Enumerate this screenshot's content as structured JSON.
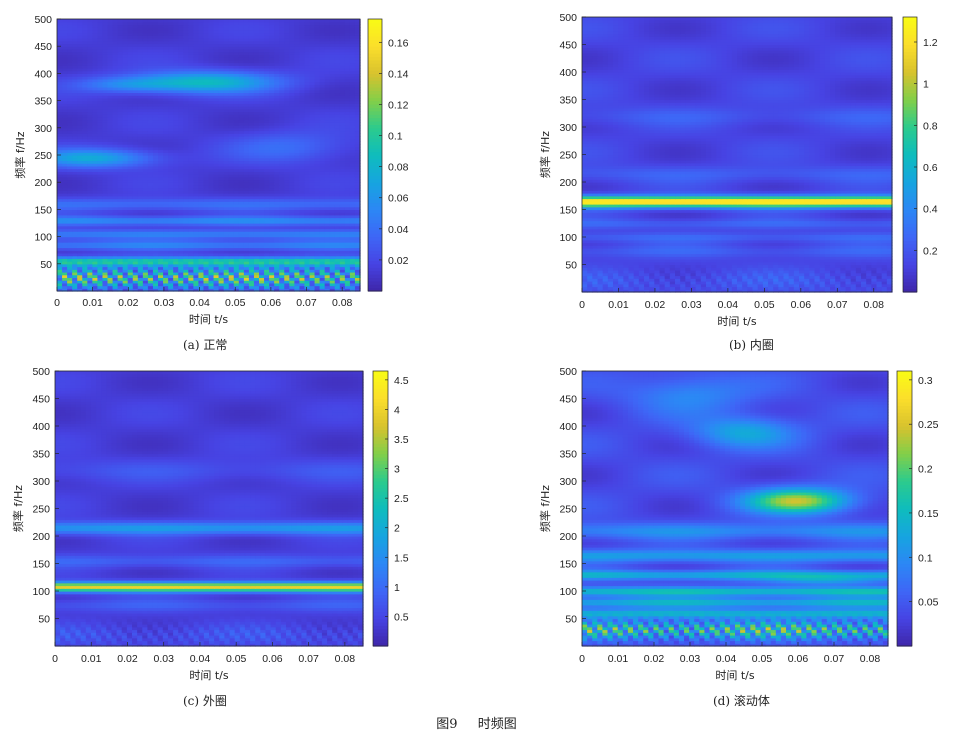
{
  "figure_caption": {
    "number": "图9",
    "title": "时频图"
  },
  "colormap": [
    "#3e26a8",
    "#4743e3",
    "#3e66f6",
    "#2c87f5",
    "#16a4e0",
    "#0ebcbd",
    "#2ccb8d",
    "#82cf49",
    "#d8c22e",
    "#fbde2b",
    "#f9fb15"
  ],
  "chart_data": [
    {
      "id": "a",
      "type": "heatmap",
      "label": "(a)  正常",
      "xlabel": "时间 t/s",
      "ylabel": "频率 f/Hz",
      "xlim": [
        0,
        0.085
      ],
      "ylim": [
        0,
        500
      ],
      "xticks": [
        "0",
        "0.01",
        "0.02",
        "0.03",
        "0.04",
        "0.05",
        "0.06",
        "0.07",
        "0.08"
      ],
      "yticks": [
        "50",
        "100",
        "150",
        "200",
        "250",
        "300",
        "350",
        "400",
        "450",
        "500"
      ],
      "colorbar_ticks": [
        "0.02",
        "0.04",
        "0.06",
        "0.08",
        "0.1",
        "0.12",
        "0.14",
        "0.16"
      ],
      "colorbar_range": [
        0,
        0.175
      ],
      "base": 0.018,
      "bands": [
        {
          "f": 25,
          "w": 14,
          "amp": 0.13,
          "pattern": "zigzag"
        },
        {
          "f": 55,
          "w": 6,
          "amp": 0.08
        },
        {
          "f": 85,
          "w": 6,
          "amp": 0.035
        },
        {
          "f": 105,
          "w": 6,
          "amp": 0.035
        },
        {
          "f": 130,
          "w": 6,
          "amp": 0.04
        },
        {
          "f": 160,
          "w": 8,
          "amp": 0.025
        }
      ],
      "blobs": [
        {
          "t": 0.01,
          "f": 245,
          "st": 0.012,
          "sf": 12,
          "amp": 0.06
        },
        {
          "t": 0.042,
          "f": 385,
          "st": 0.014,
          "sf": 14,
          "amp": 0.07
        },
        {
          "t": 0.02,
          "f": 380,
          "st": 0.01,
          "sf": 10,
          "amp": 0.035
        },
        {
          "t": 0.065,
          "f": 265,
          "st": 0.012,
          "sf": 20,
          "amp": 0.025
        }
      ]
    },
    {
      "id": "b",
      "type": "heatmap",
      "label": "(b)  内圈",
      "xlabel": "时间 t/s",
      "ylabel": "频率 f/Hz",
      "xlim": [
        0,
        0.085
      ],
      "ylim": [
        0,
        500
      ],
      "xticks": [
        "0",
        "0.01",
        "0.02",
        "0.03",
        "0.04",
        "0.05",
        "0.06",
        "0.07",
        "0.08"
      ],
      "yticks": [
        "50",
        "100",
        "150",
        "200",
        "250",
        "300",
        "350",
        "400",
        "450",
        "500"
      ],
      "colorbar_ticks": [
        "0.2",
        "0.4",
        "0.6",
        "0.8",
        "1",
        "1.2"
      ],
      "colorbar_range": [
        0,
        1.32
      ],
      "base": 0.18,
      "bands": [
        {
          "f": 165,
          "w": 7,
          "amp": 1.15
        },
        {
          "f": 125,
          "w": 6,
          "amp": 0.12
        },
        {
          "f": 100,
          "w": 6,
          "amp": 0.12
        },
        {
          "f": 75,
          "w": 8,
          "amp": 0.1
        },
        {
          "f": 20,
          "w": 14,
          "amp": 0.12,
          "pattern": "zigzag"
        },
        {
          "f": 215,
          "w": 10,
          "amp": 0.1
        },
        {
          "f": 320,
          "w": 12,
          "amp": 0.08
        }
      ],
      "blobs": []
    },
    {
      "id": "c",
      "type": "heatmap",
      "label": "(c)  外圈",
      "xlabel": "时间 t/s",
      "ylabel": "频率 f/Hz",
      "xlim": [
        0,
        0.085
      ],
      "ylim": [
        0,
        500
      ],
      "xticks": [
        "0",
        "0.01",
        "0.02",
        "0.03",
        "0.04",
        "0.05",
        "0.06",
        "0.07",
        "0.08"
      ],
      "yticks": [
        "50",
        "100",
        "150",
        "200",
        "250",
        "300",
        "350",
        "400",
        "450",
        "500"
      ],
      "colorbar_ticks": [
        "0.5",
        "1",
        "1.5",
        "2",
        "2.5",
        "3",
        "3.5",
        "4",
        "4.5"
      ],
      "colorbar_range": [
        0,
        4.65
      ],
      "base": 0.5,
      "bands": [
        {
          "f": 108,
          "w": 6,
          "amp": 3.6
        },
        {
          "f": 215,
          "w": 8,
          "amp": 1.3
        },
        {
          "f": 155,
          "w": 8,
          "amp": 0.5
        },
        {
          "f": 75,
          "w": 8,
          "amp": 0.4
        },
        {
          "f": 20,
          "w": 14,
          "amp": 0.5,
          "pattern": "zigzag"
        },
        {
          "f": 320,
          "w": 14,
          "amp": 0.3
        }
      ],
      "blobs": []
    },
    {
      "id": "d",
      "type": "heatmap",
      "label": "(d)  滚动体",
      "xlabel": "时间 t/s",
      "ylabel": "频率 f/Hz",
      "xlim": [
        0,
        0.085
      ],
      "ylim": [
        0,
        500
      ],
      "xticks": [
        "0",
        "0.01",
        "0.02",
        "0.03",
        "0.04",
        "0.05",
        "0.06",
        "0.07",
        "0.08"
      ],
      "yticks": [
        "50",
        "100",
        "150",
        "200",
        "250",
        "300",
        "350",
        "400",
        "450",
        "500"
      ],
      "colorbar_ticks": [
        "0.05",
        "0.1",
        "0.15",
        "0.2",
        "0.25",
        "0.3"
      ],
      "colorbar_range": [
        0,
        0.31
      ],
      "base": 0.05,
      "bands": [
        {
          "f": 30,
          "w": 12,
          "amp": 0.2,
          "pattern": "zigzag"
        },
        {
          "f": 60,
          "w": 6,
          "amp": 0.1
        },
        {
          "f": 80,
          "w": 6,
          "amp": 0.1
        },
        {
          "f": 100,
          "w": 6,
          "amp": 0.12
        },
        {
          "f": 130,
          "w": 6,
          "amp": 0.1
        },
        {
          "f": 165,
          "w": 8,
          "amp": 0.08
        },
        {
          "f": 210,
          "w": 10,
          "amp": 0.06
        }
      ],
      "blobs": [
        {
          "t": 0.06,
          "f": 265,
          "st": 0.01,
          "sf": 16,
          "amp": 0.2
        },
        {
          "t": 0.045,
          "f": 390,
          "st": 0.01,
          "sf": 20,
          "amp": 0.09
        },
        {
          "t": 0.068,
          "f": 120,
          "st": 0.012,
          "sf": 6,
          "amp": 0.07
        },
        {
          "t": 0.03,
          "f": 460,
          "st": 0.012,
          "sf": 25,
          "amp": 0.06
        }
      ]
    }
  ]
}
